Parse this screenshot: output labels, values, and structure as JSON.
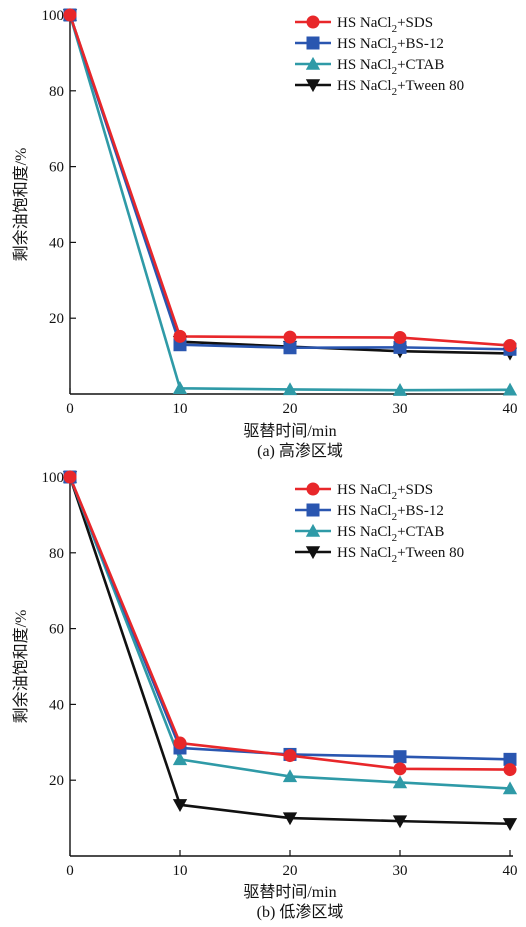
{
  "chart_data": [
    {
      "type": "line",
      "x": [
        0,
        10,
        20,
        30,
        40
      ],
      "xlim": [
        0,
        40
      ],
      "ylim": [
        0,
        100
      ],
      "xticks": [
        "0",
        "10",
        "20",
        "30",
        "40"
      ],
      "yticks": [
        "100",
        "80",
        "60",
        "40",
        "20"
      ],
      "xlabel": "驱替时间/min",
      "ylabel": "剩余油饱和度/%",
      "caption": "(a) 高渗区域",
      "legend_position": "top-right",
      "grid": false,
      "series": [
        {
          "name": "HS NaCl2+SDS",
          "legend_main": "HS NaCl",
          "legend_sub": "2",
          "legend_tail": "+SDS",
          "color": "#e8272a",
          "marker": "circle",
          "values": [
            100,
            15.2,
            15.0,
            14.9,
            12.8
          ]
        },
        {
          "name": "HS NaCl2+BS-12",
          "legend_main": "HS NaCl",
          "legend_sub": "2",
          "legend_tail": "+BS-12",
          "color": "#2a56b0",
          "marker": "square",
          "values": [
            100,
            13.0,
            12.2,
            12.3,
            11.8
          ]
        },
        {
          "name": "HS NaCl2+CTAB",
          "legend_main": "HS NaCl",
          "legend_sub": "2",
          "legend_tail": "+CTAB",
          "color": "#2f9aa7",
          "marker": "triangle-up",
          "values": [
            100,
            1.5,
            1.2,
            1.0,
            1.1
          ]
        },
        {
          "name": "HS NaCl2+Tween 80",
          "legend_main": "HS NaCl",
          "legend_sub": "2",
          "legend_tail": "+Tween 80",
          "color": "#111111",
          "marker": "triangle-down",
          "values": [
            100,
            13.8,
            12.5,
            11.3,
            10.7
          ]
        }
      ]
    },
    {
      "type": "line",
      "x": [
        0,
        10,
        20,
        30,
        40
      ],
      "xlim": [
        0,
        40
      ],
      "ylim": [
        0,
        100
      ],
      "xticks": [
        "0",
        "10",
        "20",
        "30",
        "40"
      ],
      "yticks": [
        "100",
        "80",
        "60",
        "40",
        "20"
      ],
      "xlabel": "驱替时间/min",
      "ylabel": "剩余油饱和度/%",
      "caption": "(b) 低渗区域",
      "legend_position": "top-right",
      "grid": false,
      "series": [
        {
          "name": "HS NaCl2+SDS",
          "legend_main": "HS NaCl",
          "legend_sub": "2",
          "legend_tail": "+SDS",
          "color": "#e8272a",
          "marker": "circle",
          "values": [
            100,
            29.8,
            26.5,
            23.0,
            22.8
          ]
        },
        {
          "name": "HS NaCl2+BS-12",
          "legend_main": "HS NaCl",
          "legend_sub": "2",
          "legend_tail": "+BS-12",
          "color": "#2a56b0",
          "marker": "square",
          "values": [
            100,
            28.5,
            26.8,
            26.2,
            25.5
          ]
        },
        {
          "name": "HS NaCl2+CTAB",
          "legend_main": "HS NaCl",
          "legend_sub": "2",
          "legend_tail": "+CTAB",
          "color": "#2f9aa7",
          "marker": "triangle-up",
          "values": [
            100,
            25.5,
            21.0,
            19.4,
            17.8
          ]
        },
        {
          "name": "HS NaCl2+Tween 80",
          "legend_main": "HS NaCl",
          "legend_sub": "2",
          "legend_tail": "+Tween 80",
          "color": "#111111",
          "marker": "triangle-down",
          "values": [
            100,
            13.5,
            10.0,
            9.2,
            8.5
          ]
        }
      ]
    }
  ]
}
